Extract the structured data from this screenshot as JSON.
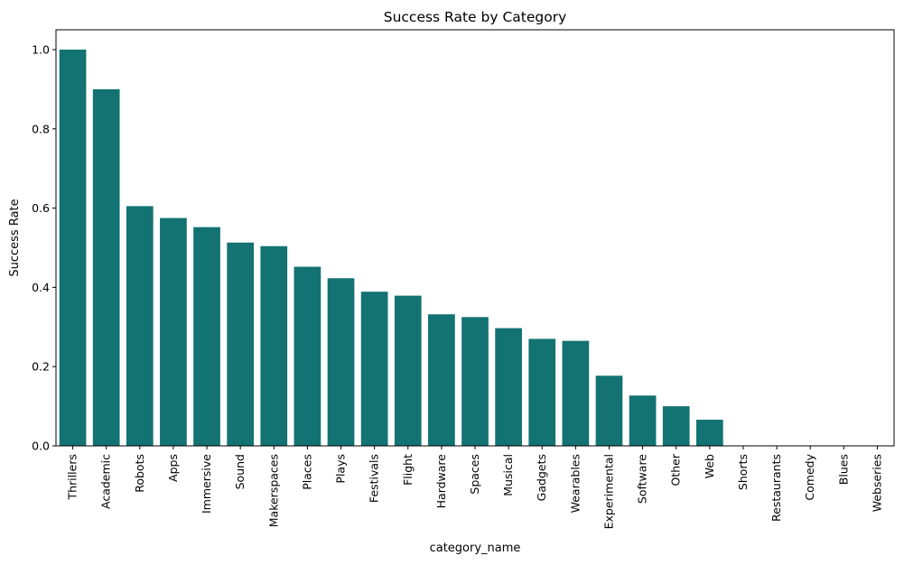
{
  "chart_data": {
    "type": "bar",
    "title": "Success Rate by Category",
    "xlabel": "category_name",
    "ylabel": "Success Rate",
    "categories": [
      "Thrillers",
      "Academic",
      "Robots",
      "Apps",
      "Immersive",
      "Sound",
      "Makerspaces",
      "Places",
      "Plays",
      "Festivals",
      "Flight",
      "Hardware",
      "Spaces",
      "Musical",
      "Gadgets",
      "Wearables",
      "Experimental",
      "Software",
      "Other",
      "Web",
      "Shorts",
      "Restaurants",
      "Comedy",
      "Blues",
      "Webseries"
    ],
    "values": [
      1.0,
      0.9,
      0.605,
      0.575,
      0.552,
      0.513,
      0.504,
      0.452,
      0.423,
      0.389,
      0.379,
      0.332,
      0.325,
      0.297,
      0.27,
      0.265,
      0.177,
      0.127,
      0.1,
      0.066,
      0,
      0,
      0,
      0,
      0
    ],
    "ylim": [
      0,
      1.05
    ],
    "yticks": [
      "0.0",
      "0.2",
      "0.4",
      "0.6",
      "0.8",
      "1.0"
    ],
    "bar_color": "#137272",
    "grid": false
  }
}
